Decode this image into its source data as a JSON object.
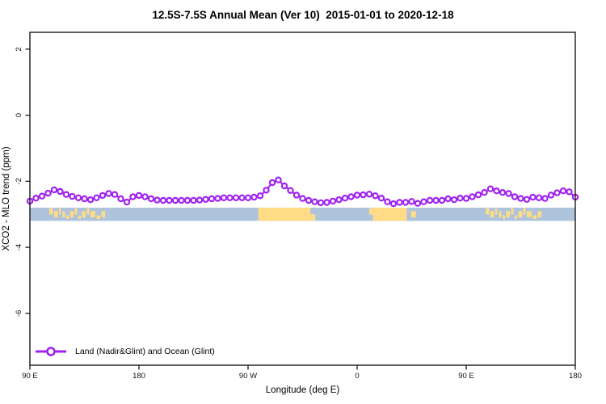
{
  "title": "12.5S-7.5S Annual Mean (Ver 10)  2015-01-01 to 2020-12-18",
  "chart_data": {
    "type": "line",
    "title": "12.5S-7.5S Annual Mean (Ver 10)  2015-01-01 to 2020-12-18",
    "xlabel": "Longitude (deg E)",
    "ylabel": "XCO2 - MLO trend (ppm)",
    "xlim": [
      90,
      540
    ],
    "ylim": [
      -7.57,
      2.51
    ],
    "grid": false,
    "x_ticks": {
      "values": [
        90,
        180,
        270,
        360,
        450,
        540
      ],
      "labels": [
        "90 E",
        "180",
        "90 W",
        "0",
        "90 E",
        "180"
      ]
    },
    "y_ticks": {
      "values": [
        2,
        0,
        -2,
        -4,
        -6
      ],
      "labels": [
        "2",
        "0",
        "-2",
        "-4",
        "-6"
      ]
    },
    "axis_color": "#1a1a1a",
    "tick_label_color": "#111111",
    "legend": {
      "position": "bottom-left",
      "entries": [
        {
          "label": "Land (Nadir&Glint) and Ocean (Glint)",
          "color": "#A020F0",
          "marker": "open-circle"
        }
      ]
    },
    "series": [
      {
        "name": "Land (Nadir&Glint) and Ocean (Glint)",
        "color": "#A020F0",
        "marker": "open-circle",
        "x": [
          90,
          95,
          100,
          105,
          110,
          115,
          120,
          125,
          130,
          135,
          140,
          145,
          150,
          155,
          160,
          165,
          170,
          175,
          180,
          185,
          190,
          195,
          200,
          205,
          210,
          215,
          220,
          225,
          230,
          235,
          240,
          245,
          250,
          255,
          260,
          265,
          270,
          275,
          280,
          285,
          290,
          295,
          300,
          305,
          310,
          315,
          320,
          325,
          330,
          335,
          340,
          345,
          350,
          355,
          360,
          365,
          370,
          375,
          380,
          385,
          390,
          395,
          400,
          405,
          410,
          415,
          420,
          425,
          430,
          435,
          440,
          445,
          450,
          455,
          460,
          465,
          470,
          475,
          480,
          485,
          490,
          495,
          500,
          505,
          510,
          515,
          520,
          525,
          530,
          535,
          540
        ],
        "y": [
          -2.6,
          -2.51,
          -2.45,
          -2.36,
          -2.26,
          -2.31,
          -2.4,
          -2.46,
          -2.5,
          -2.53,
          -2.56,
          -2.5,
          -2.43,
          -2.37,
          -2.4,
          -2.53,
          -2.63,
          -2.47,
          -2.43,
          -2.47,
          -2.53,
          -2.57,
          -2.58,
          -2.58,
          -2.58,
          -2.58,
          -2.58,
          -2.58,
          -2.57,
          -2.55,
          -2.53,
          -2.52,
          -2.5,
          -2.5,
          -2.5,
          -2.5,
          -2.5,
          -2.48,
          -2.44,
          -2.27,
          -2.04,
          -1.96,
          -2.14,
          -2.28,
          -2.42,
          -2.52,
          -2.58,
          -2.62,
          -2.65,
          -2.64,
          -2.6,
          -2.56,
          -2.51,
          -2.47,
          -2.42,
          -2.41,
          -2.39,
          -2.44,
          -2.51,
          -2.62,
          -2.68,
          -2.64,
          -2.64,
          -2.61,
          -2.67,
          -2.62,
          -2.58,
          -2.58,
          -2.58,
          -2.53,
          -2.56,
          -2.51,
          -2.52,
          -2.47,
          -2.41,
          -2.34,
          -2.23,
          -2.29,
          -2.34,
          -2.37,
          -2.47,
          -2.52,
          -2.55,
          -2.48,
          -2.5,
          -2.52,
          -2.42,
          -2.35,
          -2.29,
          -2.32,
          -2.48
        ]
      }
    ],
    "map_strip": {
      "description": "land-ocean band along 12.5S-7.5S",
      "y_range": [
        -2.8,
        -3.2
      ],
      "ocean_color": "#AEC3DC",
      "land_color": "#FFDC85",
      "land_patches": [
        {
          "from": 106,
          "to": 109,
          "part": "upper"
        },
        {
          "from": 110,
          "to": 113,
          "part": "mid"
        },
        {
          "from": 114,
          "to": 115.5,
          "part": "upper"
        },
        {
          "from": 117,
          "to": 119,
          "part": "mid"
        },
        {
          "from": 120,
          "to": 122,
          "part": "thin-bottom"
        },
        {
          "from": 123,
          "to": 126,
          "part": "mid"
        },
        {
          "from": 127,
          "to": 129,
          "part": "upper"
        },
        {
          "from": 130,
          "to": 132,
          "part": "thin-bottom"
        },
        {
          "from": 133,
          "to": 136,
          "part": "mid"
        },
        {
          "from": 137,
          "to": 139,
          "part": "upper"
        },
        {
          "from": 140,
          "to": 144,
          "part": "mid"
        },
        {
          "from": 145,
          "to": 148,
          "part": "thin-bottom"
        },
        {
          "from": 149,
          "to": 152,
          "part": "mid"
        },
        {
          "from": 278.5,
          "to": 321.5,
          "part": "full"
        },
        {
          "from": 321.5,
          "to": 325.5,
          "part": "lower"
        },
        {
          "from": 370,
          "to": 373,
          "part": "upper"
        },
        {
          "from": 373,
          "to": 401,
          "part": "full"
        },
        {
          "from": 404.5,
          "to": 408.5,
          "part": "mid"
        },
        {
          "from": 466,
          "to": 469,
          "part": "upper"
        },
        {
          "from": 470,
          "to": 473,
          "part": "mid"
        },
        {
          "from": 474,
          "to": 475.5,
          "part": "upper"
        },
        {
          "from": 477,
          "to": 479,
          "part": "mid"
        },
        {
          "from": 480,
          "to": 482,
          "part": "thin-bottom"
        },
        {
          "from": 483,
          "to": 486,
          "part": "mid"
        },
        {
          "from": 487,
          "to": 489,
          "part": "upper"
        },
        {
          "from": 490,
          "to": 492,
          "part": "thin-bottom"
        },
        {
          "from": 493,
          "to": 496,
          "part": "mid"
        },
        {
          "from": 497,
          "to": 499,
          "part": "upper"
        },
        {
          "from": 500,
          "to": 504,
          "part": "mid"
        },
        {
          "from": 505,
          "to": 508,
          "part": "thin-bottom"
        },
        {
          "from": 509,
          "to": 512,
          "part": "mid"
        }
      ]
    }
  }
}
